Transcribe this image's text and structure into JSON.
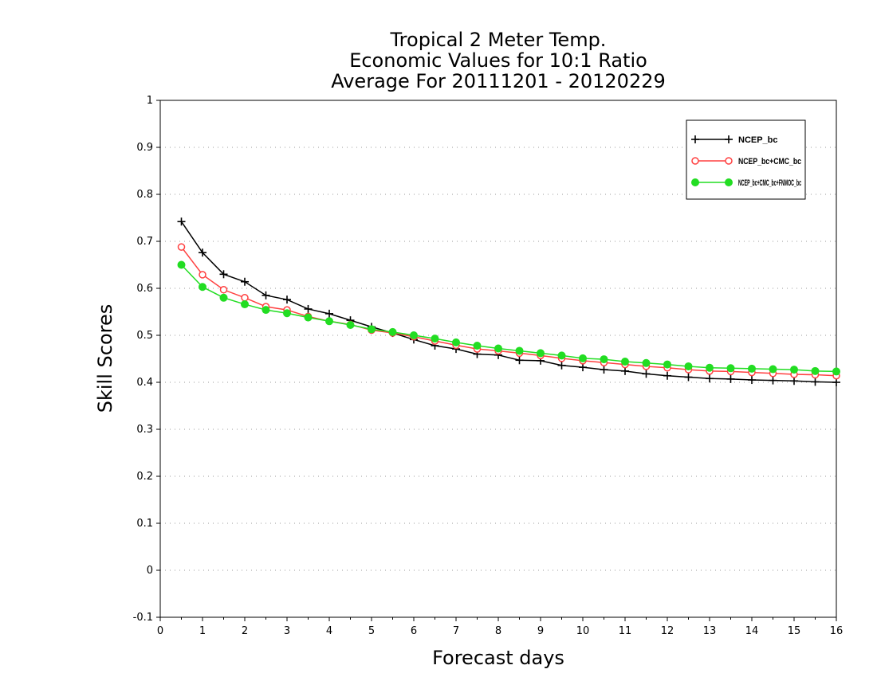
{
  "chart_data": {
    "type": "line",
    "title": [
      "Tropical 2 Meter Temp.",
      "Economic Values for 10:1 Ratio",
      "Average For 20111201 - 20120229"
    ],
    "xlabel": "Forecast days",
    "ylabel": "Skill Scores",
    "xlim": [
      0,
      16
    ],
    "ylim": [
      -0.1,
      1
    ],
    "x_ticks": [
      0,
      1,
      2,
      3,
      4,
      5,
      6,
      7,
      8,
      9,
      10,
      11,
      12,
      13,
      14,
      15,
      16
    ],
    "x_tick_labels": [
      "0",
      "1",
      "2",
      "3",
      "4",
      "5",
      "6",
      "7",
      "8",
      "9",
      "10",
      "11",
      "12",
      "13",
      "14",
      "15",
      "16"
    ],
    "y_ticks": [
      -0.1,
      0,
      0.1,
      0.2,
      0.3,
      0.4,
      0.5,
      0.6,
      0.7,
      0.8,
      0.9,
      1
    ],
    "y_tick_labels": [
      "-0.1",
      "0",
      "0.1",
      "0.2",
      "0.3",
      "0.4",
      "0.5",
      "0.6",
      "0.7",
      "0.8",
      "0.9",
      "1"
    ],
    "grid": "horizontal dotted",
    "legend_position": "top-right",
    "x": [
      0.5,
      1,
      1.5,
      2,
      2.5,
      3,
      3.5,
      4,
      4.5,
      5,
      5.5,
      6,
      6.5,
      7,
      7.5,
      8,
      8.5,
      9,
      9.5,
      10,
      10.5,
      11,
      11.5,
      12,
      12.5,
      13,
      13.5,
      14,
      14.5,
      15,
      15.5,
      16
    ],
    "series": [
      {
        "name": "NCEP_bc",
        "color": "#000000",
        "marker": "plus",
        "values": [
          0.742,
          0.676,
          0.63,
          0.614,
          0.585,
          0.576,
          0.556,
          0.546,
          0.532,
          0.518,
          0.505,
          0.491,
          0.478,
          0.471,
          0.46,
          0.458,
          0.447,
          0.446,
          0.436,
          0.432,
          0.427,
          0.424,
          0.418,
          0.414,
          0.411,
          0.408,
          0.407,
          0.405,
          0.404,
          0.403,
          0.401,
          0.4
        ]
      },
      {
        "name": "NCEP_bc+CMC_bc",
        "color": "#ff4040",
        "marker": "open-circle",
        "values": [
          0.688,
          0.629,
          0.597,
          0.58,
          0.561,
          0.554,
          0.54,
          0.53,
          0.523,
          0.511,
          0.505,
          0.497,
          0.488,
          0.479,
          0.471,
          0.467,
          0.462,
          0.457,
          0.451,
          0.446,
          0.442,
          0.438,
          0.434,
          0.431,
          0.427,
          0.424,
          0.423,
          0.421,
          0.419,
          0.417,
          0.416,
          0.414
        ]
      },
      {
        "name": "NCEP_bc+CMC_bc+FNMOC_bc",
        "color": "#22dd22",
        "marker": "filled-circle",
        "values": [
          0.65,
          0.603,
          0.58,
          0.566,
          0.554,
          0.547,
          0.538,
          0.53,
          0.522,
          0.513,
          0.507,
          0.5,
          0.493,
          0.485,
          0.478,
          0.472,
          0.467,
          0.462,
          0.457,
          0.451,
          0.449,
          0.444,
          0.441,
          0.438,
          0.434,
          0.431,
          0.43,
          0.429,
          0.428,
          0.427,
          0.424,
          0.423
        ]
      }
    ]
  }
}
